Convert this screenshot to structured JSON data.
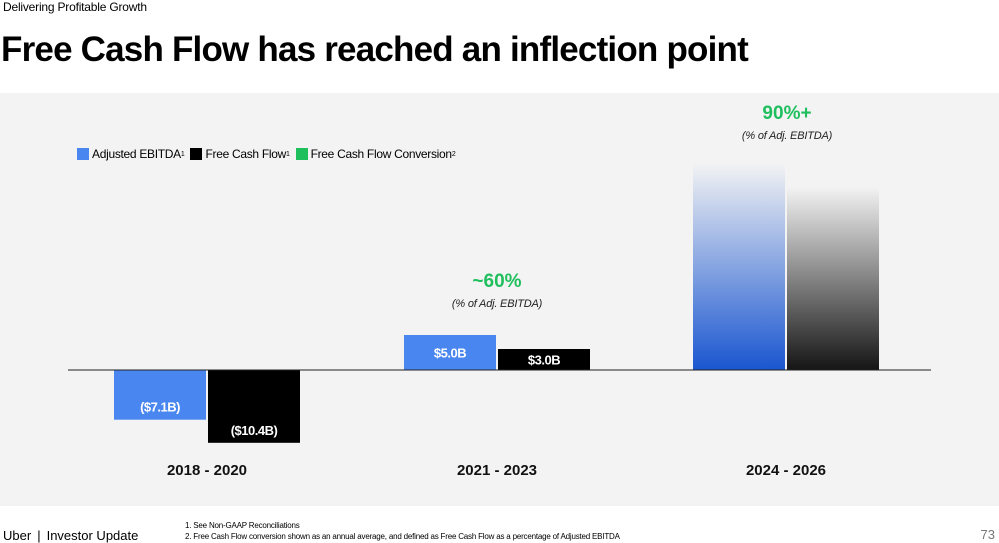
{
  "header": {
    "eyebrow": "Delivering Profitable Growth",
    "title": "Free Cash Flow has reached an inflection point"
  },
  "legend": [
    {
      "label": "Adjusted EBITDA",
      "sup": "1",
      "color": "#4a86f0"
    },
    {
      "label": "Free Cash Flow",
      "sup": "1",
      "color": "#000000"
    },
    {
      "label": "Free Cash Flow Conversion",
      "sup": "2",
      "color": "#1fbf5e"
    }
  ],
  "conversion": [
    {
      "period": "2021 - 2023",
      "value": "~60%",
      "note": "(% of Adj. EBITDA)"
    },
    {
      "period": "2024 - 2026",
      "value": "90%+",
      "note": "(% of Adj. EBITDA)"
    }
  ],
  "chart_data": {
    "type": "bar",
    "categories": [
      "2018 - 2020",
      "2021 - 2023",
      "2024 - 2026"
    ],
    "series": [
      {
        "name": "Adjusted EBITDA",
        "values": [
          -7.1,
          5.0,
          null
        ],
        "labels": [
          "($7.1B)",
          "$5.0B",
          ""
        ]
      },
      {
        "name": "Free Cash Flow",
        "values": [
          -10.4,
          3.0,
          null
        ],
        "labels": [
          "($10.4B)",
          "$3.0B",
          ""
        ]
      }
    ],
    "unit": "$B",
    "ylim": [
      -11,
      30
    ],
    "note": "2024 - 2026 bars drawn without values (projection, unlabeled)",
    "title": "Free Cash Flow has reached an inflection point"
  },
  "footer": {
    "brand": "Uber",
    "separator": "|",
    "subtitle": "Investor Update",
    "footnote1": "1. See Non-GAAP Reconciliations",
    "footnote2": "2. Free Cash Flow conversion shown as an annual average, and defined as Free Cash Flow as a percentage of Adjusted EBITDA",
    "page": "73"
  }
}
